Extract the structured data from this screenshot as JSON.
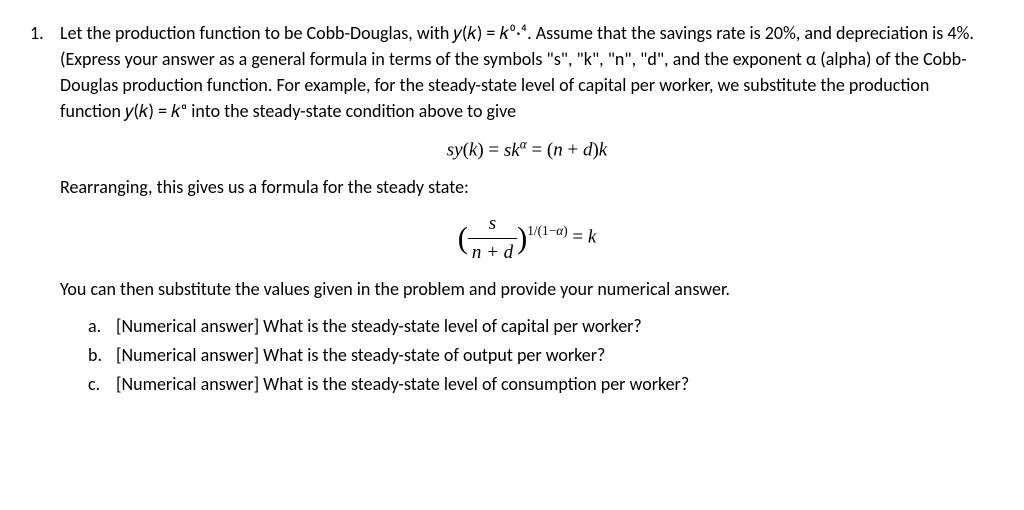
{
  "problem_number": "1.",
  "paragraph1": "Let the production function to be Cobb-Douglas, with 𝑦(𝑘) = 𝑘⁰·⁴. Assume that the savings rate is 20%, and depreciation is 4%.   (Express your answer as a general formula in terms of the symbols \"s\", \"k\", \"n\", \"d\", and the exponent α (alpha) of the Cobb-Douglas production function. For example, for the steady-state level of capital per worker, we substitute the production function 𝑦(𝑘) = 𝑘ᵅ into the steady-state condition above to give",
  "equation1_html": "<span class='it'>sy</span>(<span class='it'>k</span>) = <span class='it'>sk<span class='sup'>α</span></span> = (<span class='it'>n</span> + <span class='it'>d</span>)<span class='it'>k</span>",
  "paragraph2": "Rearranging, this gives us a formula for the steady state:",
  "equation2_html": "<span class='big-paren'>(</span><span class='frac'><span class='top'>s</span><span class='bot'>n + d</span></span><span class='big-paren'>)</span><span class='sup'>1/(1−<span class='it'>α</span>)</span> = <span class='it'>k</span>",
  "paragraph3": "You can then substitute the values given in the problem and provide your numerical answer.",
  "subitems": [
    {
      "letter": "a.",
      "text": "[Numerical answer] What is the steady-state level of capital per worker?"
    },
    {
      "letter": "b.",
      "text": "[Numerical answer] What is the steady-state of output per worker?"
    },
    {
      "letter": "c.",
      "text": "[Numerical answer] What is the steady-state level of consumption per worker?"
    }
  ],
  "style": {
    "background_color": "#ffffff",
    "text_color": "#000000",
    "body_font_size_pt": 14,
    "equation_font_size_pt": 14
  }
}
